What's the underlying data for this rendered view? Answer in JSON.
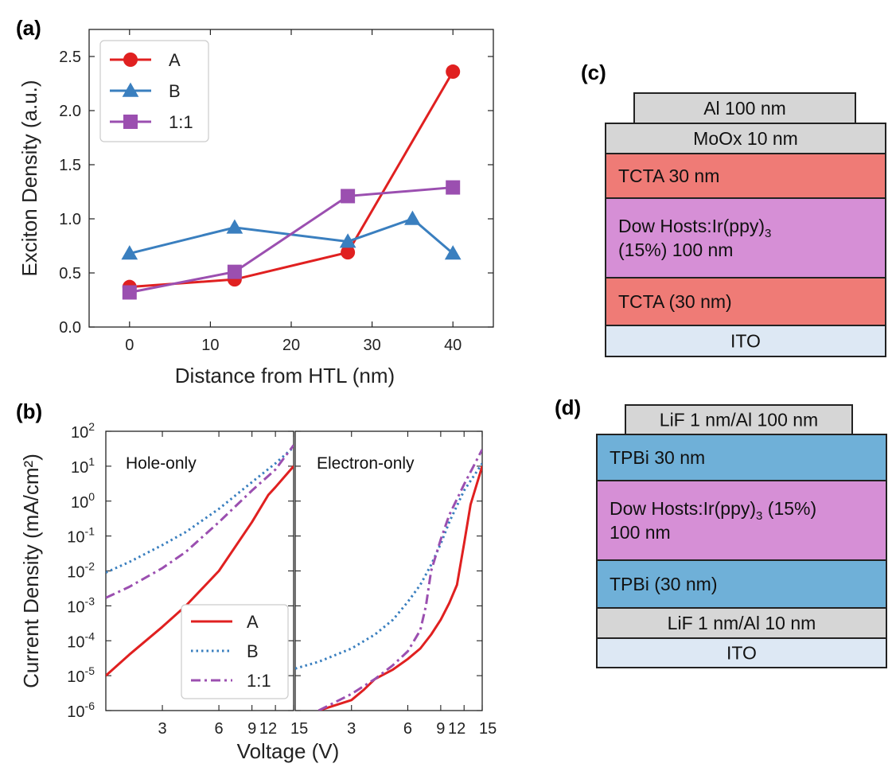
{
  "panels": {
    "a": "(a)",
    "b": "(b)",
    "c": "(c)",
    "d": "(d)"
  },
  "chart_data": [
    {
      "id": "a",
      "type": "line",
      "xlabel": "Distance from HTL (nm)",
      "ylabel": "Exciton Density (a.u.)",
      "xlim": [
        -5,
        45
      ],
      "ylim": [
        0,
        2.75
      ],
      "xticks": [
        0,
        10,
        20,
        30,
        40
      ],
      "yticks": [
        0.0,
        0.5,
        1.0,
        1.5,
        2.0,
        2.5
      ],
      "ytick_labels": [
        "0.0",
        "0.5",
        "1.0",
        "1.5",
        "2.0",
        "2.5"
      ],
      "legend_position": "top-left",
      "series": [
        {
          "name": "A",
          "color": "#e02020",
          "marker": "circle",
          "x": [
            0,
            13,
            27,
            40
          ],
          "y": [
            0.37,
            0.44,
            0.69,
            2.36
          ]
        },
        {
          "name": "B",
          "color": "#3a7fbf",
          "marker": "triangle",
          "x": [
            0,
            13,
            27,
            35,
            40
          ],
          "y": [
            0.68,
            0.92,
            0.79,
            1.0,
            0.68
          ]
        },
        {
          "name": "1:1",
          "color": "#9b4fb0",
          "marker": "square",
          "x": [
            0,
            13,
            27,
            40
          ],
          "y": [
            0.32,
            0.51,
            1.21,
            1.29
          ]
        }
      ]
    },
    {
      "id": "b",
      "type": "line",
      "xlabel": "Voltage (V)",
      "ylabel": "Current Density (mA/cm²)",
      "yscale": "log",
      "ylim": [
        1e-06,
        100
      ],
      "yticks": [
        1e-06,
        1e-05,
        0.0001,
        0.001,
        0.01,
        0.1,
        1,
        10,
        100
      ],
      "ytick_exponents": [
        "-6",
        "-5",
        "-4",
        "-3",
        "-2",
        "-1",
        "0",
        "1",
        "2"
      ],
      "xscale": "log",
      "xlim": [
        1.5,
        15
      ],
      "xticks": [
        3,
        6,
        9,
        12,
        15
      ],
      "xtick_labels": [
        "3",
        "6",
        "9",
        "12",
        "15"
      ],
      "legend_position": "bottom-right of left subplot",
      "subplots": [
        {
          "title": "Hole-only",
          "series": [
            {
              "name": "A",
              "style": "solid",
              "color": "#e02020",
              "x": [
                1.5,
                2,
                3,
                4,
                6,
                9,
                11,
                12,
                15
              ],
              "y": [
                1e-05,
                4e-05,
                0.00025,
                0.001,
                0.01,
                0.25,
                1.5,
                2.5,
                10
              ]
            },
            {
              "name": "B",
              "style": "dotted",
              "color": "#3a7fbf",
              "x": [
                1.5,
                2,
                3,
                4,
                6,
                9,
                12,
                15
              ],
              "y": [
                0.009,
                0.018,
                0.055,
                0.13,
                0.6,
                3.5,
                12,
                35
              ]
            },
            {
              "name": "1:1",
              "style": "dashdot",
              "color": "#9b4fb0",
              "x": [
                1.5,
                2,
                3,
                4,
                6,
                9,
                12,
                15
              ],
              "y": [
                0.0017,
                0.0035,
                0.012,
                0.035,
                0.25,
                2,
                8,
                40
              ]
            }
          ]
        },
        {
          "title": "Electron-only",
          "series": [
            {
              "name": "A",
              "style": "solid",
              "color": "#e02020",
              "x": [
                2,
                3,
                3.5,
                4,
                5,
                6,
                7,
                8,
                9,
                10,
                11,
                12,
                13,
                15
              ],
              "y": [
                1e-06,
                2e-06,
                4e-06,
                8e-06,
                1.5e-05,
                3e-05,
                6e-05,
                0.00015,
                0.0004,
                0.0012,
                0.004,
                0.06,
                0.8,
                10
              ]
            },
            {
              "name": "B",
              "style": "dotted",
              "color": "#3a7fbf",
              "x": [
                1.5,
                2,
                3,
                4,
                5,
                6,
                7,
                8,
                9,
                10,
                12,
                15
              ],
              "y": [
                1.6e-05,
                2.5e-05,
                6e-05,
                0.00015,
                0.0004,
                0.0013,
                0.004,
                0.015,
                0.06,
                0.25,
                2,
                12
              ]
            },
            {
              "name": "1:1",
              "style": "dashdot",
              "color": "#9b4fb0",
              "x": [
                2,
                3,
                4,
                5,
                6,
                7,
                7.5,
                8,
                9,
                10,
                12,
                15
              ],
              "y": [
                1e-06,
                3e-06,
                8e-06,
                2e-05,
                5e-05,
                0.0002,
                0.001,
                0.01,
                0.08,
                0.4,
                3,
                30
              ]
            }
          ]
        }
      ]
    }
  ],
  "stacks": {
    "c": {
      "layers": [
        {
          "label": "Al 100 nm",
          "color": "#d6d6d6",
          "lines": [
            "Al 100 nm"
          ],
          "align": "center"
        },
        {
          "label": "MoOx 10 nm",
          "color": "#d6d6d6",
          "lines": [
            "MoOx 10 nm"
          ],
          "align": "center"
        },
        {
          "label": "TCTA 30 nm",
          "color": "#ef7b76",
          "lines": [
            "TCTA 30 nm"
          ],
          "align": "left"
        },
        {
          "label": "Dow Hosts:Ir(ppy)3 (15%) 100 nm",
          "color": "#d68fd6",
          "lines": [
            "Dow Hosts:Ir(ppy)",
            "(15%) 100 nm"
          ],
          "sub": "3",
          "align": "left"
        },
        {
          "label": "TCTA (30 nm)",
          "color": "#ef7b76",
          "lines": [
            "TCTA (30 nm)"
          ],
          "align": "left"
        },
        {
          "label": "ITO",
          "color": "#dde8f4",
          "lines": [
            "ITO"
          ],
          "align": "center"
        }
      ]
    },
    "d": {
      "layers": [
        {
          "label": "LiF 1 nm/Al 100 nm",
          "color": "#d6d6d6",
          "lines": [
            "LiF 1 nm/Al 100 nm"
          ],
          "align": "center"
        },
        {
          "label": "TPBi 30 nm",
          "color": "#6fb0d8",
          "lines": [
            "TPBi 30 nm"
          ],
          "align": "left"
        },
        {
          "label": "Dow Hosts:Ir(ppy)3 (15%) 100 nm",
          "color": "#d68fd6",
          "lines": [
            "Dow Hosts:Ir(ppy)",
            "100 nm"
          ],
          "sub": "3",
          "after_sub": " (15%)",
          "align": "left"
        },
        {
          "label": "TPBi (30 nm)",
          "color": "#6fb0d8",
          "lines": [
            "TPBi (30 nm)"
          ],
          "align": "left"
        },
        {
          "label": "LiF 1 nm/Al 10 nm",
          "color": "#d6d6d6",
          "lines": [
            "LiF 1 nm/Al 10 nm"
          ],
          "align": "center"
        },
        {
          "label": "ITO",
          "color": "#dde8f4",
          "lines": [
            "ITO"
          ],
          "align": "center"
        }
      ]
    }
  }
}
